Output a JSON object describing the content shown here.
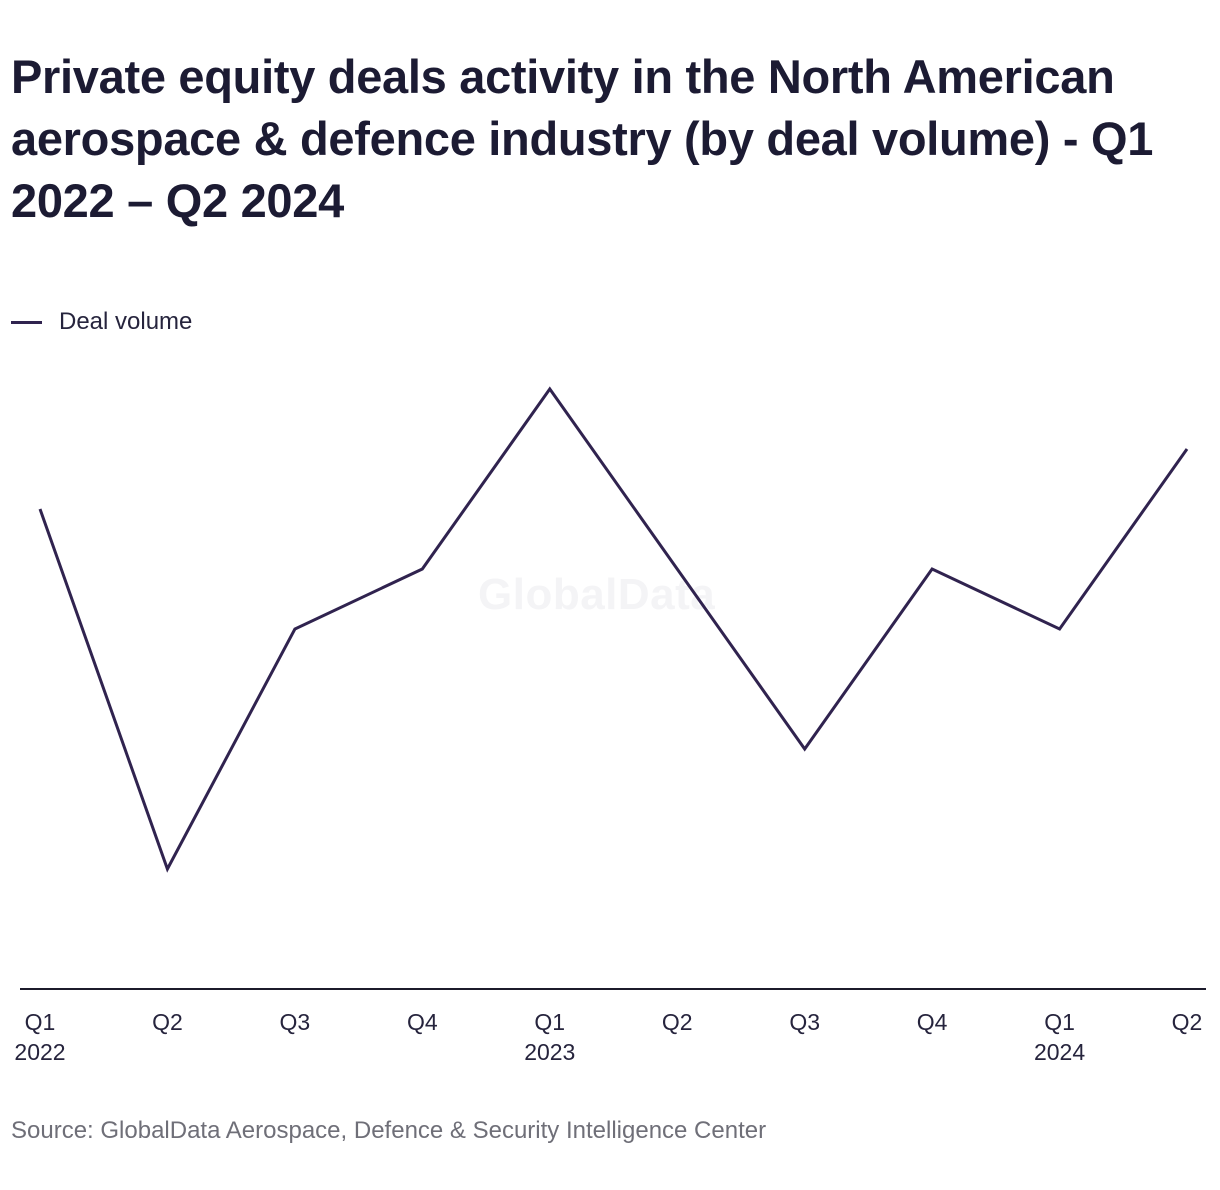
{
  "title": "Private equity deals activity in the North American aerospace & defence industry (by deal volume) - Q1 2022 – Q2 2024",
  "legend": {
    "label": "Deal volume",
    "color": "#30234f"
  },
  "watermark": "GlobalData",
  "source": "Source: GlobalData Aerospace, Defence & Security Intelligence Center",
  "chart_data": {
    "type": "line",
    "title": "Private equity deals activity in the North American aerospace & defence industry (by deal volume) - Q1 2022 – Q2 2024",
    "xlabel": "",
    "ylabel": "",
    "categories": [
      "Q1 2022",
      "Q2 2022",
      "Q3 2022",
      "Q4 2022",
      "Q1 2023",
      "Q2 2023",
      "Q3 2023",
      "Q4 2023",
      "Q1 2024",
      "Q2 2024"
    ],
    "tick_labels": [
      {
        "q": "Q1",
        "year": "2022"
      },
      {
        "q": "Q2",
        "year": ""
      },
      {
        "q": "Q3",
        "year": ""
      },
      {
        "q": "Q4",
        "year": ""
      },
      {
        "q": "Q1",
        "year": "2023"
      },
      {
        "q": "Q2",
        "year": ""
      },
      {
        "q": "Q3",
        "year": ""
      },
      {
        "q": "Q4",
        "year": ""
      },
      {
        "q": "Q1",
        "year": "2024"
      },
      {
        "q": "Q2",
        "year": ""
      }
    ],
    "series": [
      {
        "name": "Deal volume",
        "values": [
          8,
          2,
          6,
          7,
          10,
          7,
          4,
          7,
          6,
          9
        ]
      }
    ],
    "ylim": [
      0,
      12
    ],
    "y_axis_visible": false,
    "grid": false,
    "legend_position": "top-left"
  }
}
